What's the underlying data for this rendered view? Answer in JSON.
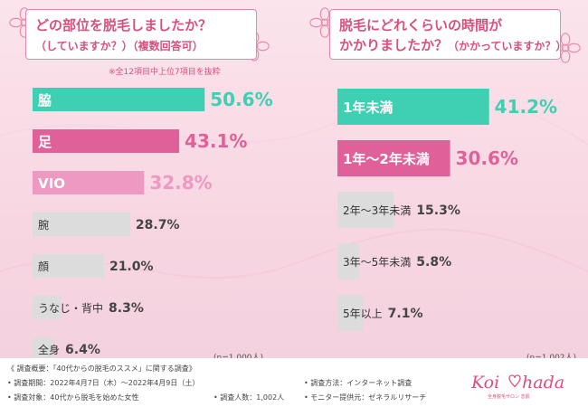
{
  "left_panel": {
    "title_line1": "どの部位を脱毛しましたか？",
    "title_line2": "（していますか？）",
    "title_line2b": "（複数回答可）",
    "note": "※全12項目中上位7項目を抜粋",
    "n_label": "(n=1,000人)"
  },
  "right_panel": {
    "title_line1": "脱毛にどれくらいの時間が",
    "title_line2": "かかりましたか？",
    "title_line2b": "（かかっていますか？）",
    "n_label": "(n=1,002人)"
  },
  "footer": {
    "survey_name": "《 調査概要：「40代からの脱毛のススメ」に関する調査》",
    "period": "• 調査期間：2022年4月7日（木）～2022年4月9日（土）",
    "method": "• 調査方法：インターネット調査",
    "target": "• 調査対象：40代から脱毛を始めた女性",
    "count": "• 調査人数：1,002人",
    "provider": "• モニター提供元：ゼネラルリサーチ"
  },
  "logo": {
    "text": "Koi hada",
    "tagline": "全身脱毛サロン 恋肌"
  },
  "colors": {
    "teal": "#3fcfb2",
    "pink_dark": "#e0609a",
    "pink_light": "#ee99c2",
    "gray": "#dcdcdc",
    "accent_text": "#d9507f"
  },
  "chart_data": [
    {
      "type": "bar",
      "orientation": "horizontal",
      "title": "どの部位を脱毛しましたか？（していますか？）（複数回答可）",
      "unit": "%",
      "categories": [
        "脇",
        "足",
        "VIO",
        "腕",
        "顔",
        "うなじ・背中",
        "全身"
      ],
      "values": [
        50.6,
        43.1,
        32.8,
        28.7,
        21.0,
        8.3,
        6.4
      ],
      "value_labels": [
        "50.6%",
        "43.1%",
        "32.8%",
        "28.7%",
        "21.0%",
        "8.3%",
        "6.4%"
      ],
      "bar_colors": [
        "#3fcfb2",
        "#e0609a",
        "#ee99c2",
        "#dcdcdc",
        "#dcdcdc",
        "#dcdcdc",
        "#dcdcdc"
      ]
    },
    {
      "type": "bar",
      "orientation": "horizontal",
      "title": "脱毛にどれくらいの時間がかかりましたか？（かかっていますか？）",
      "unit": "%",
      "categories": [
        "1年未満",
        "1年〜2年未満",
        "2年〜3年未満",
        "3年〜5年未満",
        "5年以上"
      ],
      "values": [
        41.2,
        30.6,
        15.3,
        5.8,
        7.1
      ],
      "value_labels": [
        "41.2%",
        "30.6%",
        "15.3%",
        "5.8%",
        "7.1%"
      ],
      "bar_colors": [
        "#3fcfb2",
        "#e0609a",
        "#dcdcdc",
        "#dcdcdc",
        "#dcdcdc"
      ]
    }
  ]
}
